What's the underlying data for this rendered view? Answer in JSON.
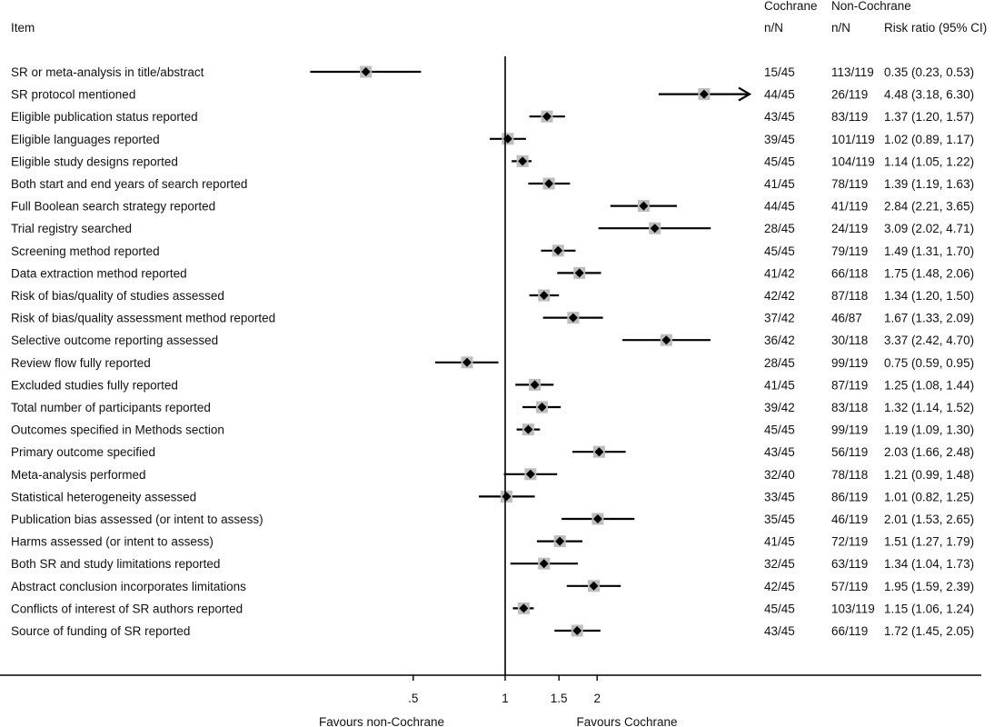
{
  "headers": {
    "item": "Item",
    "cochrane": "Cochrane",
    "non_cochrane": "Non-Cochrane",
    "cochrane_nn": "n/N",
    "non_cochrane_nn": "n/N",
    "rr": "Risk ratio (95% CI)"
  },
  "footer": {
    "favours_left": "Favours non-Cochrane",
    "favours_right": "Favours Cochrane"
  },
  "colors": {
    "line": "#000000",
    "box": "#bdbdbd",
    "diamond": "#000000"
  },
  "chart_data": {
    "type": "forest",
    "x_scale": "log",
    "null_value": 1,
    "xlim": [
      0.35,
      4.48
    ],
    "x_ticks": [
      {
        "value": 0.5,
        "label": ".5"
      },
      {
        "value": 1,
        "label": "1"
      },
      {
        "value": 1.5,
        "label": "1.5"
      },
      {
        "value": 2,
        "label": "2"
      }
    ],
    "rows": [
      {
        "item": "SR or meta-analysis in title/abstract",
        "cochrane": "15/45",
        "non_cochrane": "113/119",
        "rr_text": "0.35 (0.23, 0.53)",
        "rr": 0.35,
        "lo": 0.23,
        "hi": 0.53
      },
      {
        "item": "SR protocol mentioned",
        "cochrane": "44/45",
        "non_cochrane": "26/119",
        "rr_text": "4.48 (3.18, 6.30)",
        "rr": 4.48,
        "lo": 3.18,
        "hi": 6.3,
        "arrow": true
      },
      {
        "item": "Eligible publication status reported",
        "cochrane": "43/45",
        "non_cochrane": "83/119",
        "rr_text": "1.37 (1.20, 1.57)",
        "rr": 1.37,
        "lo": 1.2,
        "hi": 1.57
      },
      {
        "item": "Eligible languages reported",
        "cochrane": "39/45",
        "non_cochrane": "101/119",
        "rr_text": "1.02 (0.89, 1.17)",
        "rr": 1.02,
        "lo": 0.89,
        "hi": 1.17
      },
      {
        "item": "Eligible study designs reported",
        "cochrane": "45/45",
        "non_cochrane": "104/119",
        "rr_text": "1.14 (1.05, 1.22)",
        "rr": 1.14,
        "lo": 1.05,
        "hi": 1.22
      },
      {
        "item": "Both start and end years of search reported",
        "cochrane": "41/45",
        "non_cochrane": "78/119",
        "rr_text": "1.39 (1.19, 1.63)",
        "rr": 1.39,
        "lo": 1.19,
        "hi": 1.63
      },
      {
        "item": "Full Boolean search strategy reported",
        "cochrane": "44/45",
        "non_cochrane": "41/119",
        "rr_text": "2.84 (2.21, 3.65)",
        "rr": 2.84,
        "lo": 2.21,
        "hi": 3.65
      },
      {
        "item": "Trial registry searched",
        "cochrane": "28/45",
        "non_cochrane": "24/119",
        "rr_text": "3.09 (2.02, 4.71)",
        "rr": 3.09,
        "lo": 2.02,
        "hi": 4.71
      },
      {
        "item": "Screening method reported",
        "cochrane": "45/45",
        "non_cochrane": "79/119",
        "rr_text": "1.49 (1.31, 1.70)",
        "rr": 1.49,
        "lo": 1.31,
        "hi": 1.7
      },
      {
        "item": "Data extraction method reported",
        "cochrane": "41/42",
        "non_cochrane": "66/118",
        "rr_text": "1.75 (1.48, 2.06)",
        "rr": 1.75,
        "lo": 1.48,
        "hi": 2.06
      },
      {
        "item": "Risk of bias/quality of studies assessed",
        "cochrane": "42/42",
        "non_cochrane": "87/118",
        "rr_text": "1.34 (1.20, 1.50)",
        "rr": 1.34,
        "lo": 1.2,
        "hi": 1.5
      },
      {
        "item": "Risk of bias/quality assessment method reported",
        "cochrane": "37/42",
        "non_cochrane": "46/87",
        "rr_text": "1.67 (1.33, 2.09)",
        "rr": 1.67,
        "lo": 1.33,
        "hi": 2.09
      },
      {
        "item": "Selective outcome reporting assessed",
        "cochrane": "36/42",
        "non_cochrane": "30/118",
        "rr_text": "3.37 (2.42, 4.70)",
        "rr": 3.37,
        "lo": 2.42,
        "hi": 4.7
      },
      {
        "item": "Review flow fully reported",
        "cochrane": "28/45",
        "non_cochrane": "99/119",
        "rr_text": "0.75 (0.59, 0.95)",
        "rr": 0.75,
        "lo": 0.59,
        "hi": 0.95
      },
      {
        "item": "Excluded studies fully reported",
        "cochrane": "41/45",
        "non_cochrane": "87/119",
        "rr_text": "1.25 (1.08, 1.44)",
        "rr": 1.25,
        "lo": 1.08,
        "hi": 1.44
      },
      {
        "item": "Total number of participants reported",
        "cochrane": "39/42",
        "non_cochrane": "83/118",
        "rr_text": "1.32 (1.14, 1.52)",
        "rr": 1.32,
        "lo": 1.14,
        "hi": 1.52
      },
      {
        "item": "Outcomes specified in Methods section",
        "cochrane": "45/45",
        "non_cochrane": "99/119",
        "rr_text": "1.19 (1.09, 1.30)",
        "rr": 1.19,
        "lo": 1.09,
        "hi": 1.3
      },
      {
        "item": "Primary outcome specified",
        "cochrane": "43/45",
        "non_cochrane": "56/119",
        "rr_text": "2.03 (1.66, 2.48)",
        "rr": 2.03,
        "lo": 1.66,
        "hi": 2.48
      },
      {
        "item": "Meta-analysis performed",
        "cochrane": "32/40",
        "non_cochrane": "78/118",
        "rr_text": "1.21 (0.99, 1.48)",
        "rr": 1.21,
        "lo": 0.99,
        "hi": 1.48
      },
      {
        "item": "Statistical heterogeneity assessed",
        "cochrane": "33/45",
        "non_cochrane": "86/119",
        "rr_text": "1.01 (0.82, 1.25)",
        "rr": 1.01,
        "lo": 0.82,
        "hi": 1.25
      },
      {
        "item": "Publication bias assessed (or intent to assess)",
        "cochrane": "35/45",
        "non_cochrane": "46/119",
        "rr_text": "2.01 (1.53, 2.65)",
        "rr": 2.01,
        "lo": 1.53,
        "hi": 2.65
      },
      {
        "item": "Harms assessed (or intent to assess)",
        "cochrane": "41/45",
        "non_cochrane": "72/119",
        "rr_text": "1.51 (1.27, 1.79)",
        "rr": 1.51,
        "lo": 1.27,
        "hi": 1.79
      },
      {
        "item": "Both SR and study limitations reported",
        "cochrane": "32/45",
        "non_cochrane": "63/119",
        "rr_text": "1.34 (1.04, 1.73)",
        "rr": 1.34,
        "lo": 1.04,
        "hi": 1.73
      },
      {
        "item": "Abstract conclusion incorporates limitations",
        "cochrane": "42/45",
        "non_cochrane": "57/119",
        "rr_text": "1.95 (1.59, 2.39)",
        "rr": 1.95,
        "lo": 1.59,
        "hi": 2.39
      },
      {
        "item": "Conflicts of interest of SR authors reported",
        "cochrane": "45/45",
        "non_cochrane": "103/119",
        "rr_text": "1.15 (1.06, 1.24)",
        "rr": 1.15,
        "lo": 1.06,
        "hi": 1.24
      },
      {
        "item": "Source of funding of SR reported",
        "cochrane": "43/45",
        "non_cochrane": "66/119",
        "rr_text": "1.72 (1.45, 2.05)",
        "rr": 1.72,
        "lo": 1.45,
        "hi": 2.05
      }
    ]
  }
}
